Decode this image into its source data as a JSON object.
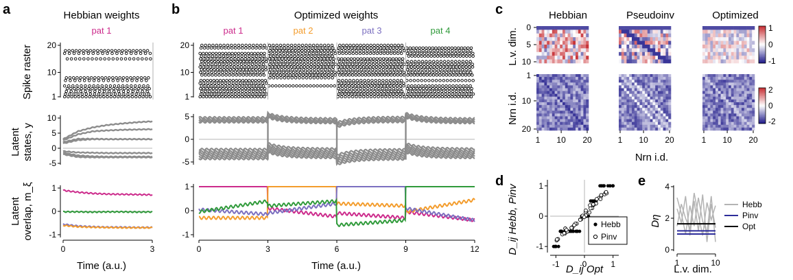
{
  "panels": {
    "a": {
      "letter": "a",
      "title": "Hebbian weights",
      "pattern_label": "pat 1"
    },
    "b": {
      "letter": "b",
      "title": "Optimized weights",
      "pattern_labels": [
        "pat 1",
        "pat 2",
        "pat 3",
        "pat 4"
      ]
    },
    "c": {
      "letter": "c",
      "column_titles": [
        "Hebbian",
        "Pseudoinv",
        "Optimized"
      ],
      "ylabel_top": "L.v. dim.",
      "ylabel_bottom": "Nrn i.d.",
      "xlabel": "Nrn i.d."
    },
    "d": {
      "letter": "d",
      "ylabel": "D_ij Hebb, Pinv",
      "xlabel": "D_ij Opt",
      "legend": [
        "Hebb",
        "Pinv"
      ]
    },
    "e": {
      "letter": "e",
      "ylabel": "Dη",
      "xlabel": "L.v. dim.",
      "legend": [
        "Hebb",
        "Pinv",
        "Opt"
      ]
    }
  },
  "row_labels": {
    "raster": "Spike raster",
    "latent_line1": "Latent",
    "latent_line2": "states, y",
    "overlap_line1": "Latent",
    "overlap_line2": "overlap, m_ξ"
  },
  "xlabel_time": "Time (a.u.)",
  "colors": {
    "pat1": "#cc2a8b",
    "pat2": "#f39c2c",
    "pat3": "#7b6fc0",
    "pat4": "#2f9a3a",
    "trace": "#8c8c8c",
    "hebb": "#b3b3b3",
    "pinv": "#2c2c9a",
    "opt": "#000000"
  },
  "chart_data": [
    {
      "type": "scatter",
      "name": "Spike raster (Hebbian)",
      "xlabel": "",
      "ylabel": "Spike raster",
      "xlim": [
        0,
        3
      ],
      "ylim": [
        1,
        20
      ],
      "yticks": [
        1,
        10,
        20
      ],
      "active_neurons": [
        1,
        2,
        3,
        4,
        5,
        7,
        8,
        15,
        17,
        18
      ]
    },
    {
      "type": "line",
      "name": "Latent states (Hebbian)",
      "ylabel": "Latent states, y",
      "xlim": [
        0,
        3
      ],
      "ylim": [
        -5,
        10
      ],
      "yticks": [
        -5,
        0,
        5,
        10
      ],
      "x": [
        0,
        0.5,
        1,
        1.5,
        2,
        2.5,
        3
      ],
      "series": [
        {
          "values": [
            3.0,
            5.6,
            6.9,
            7.7,
            8.2,
            8.6,
            8.9
          ]
        },
        {
          "values": [
            2.6,
            4.6,
            5.6,
            5.9,
            6.1,
            6.2,
            6.3
          ]
        },
        {
          "values": [
            2.0,
            3.1,
            3.1,
            3.0,
            3.0,
            3.0,
            3.0
          ]
        },
        {
          "values": [
            1.6,
            2.7,
            3.0,
            3.0,
            3.0,
            3.0,
            3.0
          ]
        },
        {
          "values": [
            -1.0,
            -1.4,
            -1.5,
            -1.6,
            -1.6,
            -1.6,
            -1.6
          ]
        },
        {
          "values": [
            -1.5,
            -2.4,
            -2.7,
            -2.8,
            -2.8,
            -2.8,
            -2.8
          ]
        },
        {
          "values": [
            -2.0,
            -2.9,
            -3.0,
            -3.0,
            -3.0,
            -3.0,
            -3.0
          ]
        }
      ]
    },
    {
      "type": "line",
      "name": "Latent overlap (Hebbian)",
      "ylabel": "Latent overlap, m_ξ",
      "xlabel": "Time (a.u.)",
      "xlim": [
        0,
        3
      ],
      "ylim": [
        -1,
        1
      ],
      "xticks": [
        0,
        3
      ],
      "yticks": [
        -1,
        0,
        1
      ],
      "x": [
        0,
        0.5,
        1,
        1.5,
        2,
        2.5,
        3
      ],
      "series": [
        {
          "values": [
            0.9,
            0.82,
            0.77,
            0.74,
            0.73,
            0.72,
            0.71
          ]
        },
        {
          "values": [
            -0.02,
            -0.02,
            -0.03,
            -0.02,
            -0.02,
            -0.03,
            -0.02
          ]
        },
        {
          "values": [
            -0.55,
            -0.63,
            -0.66,
            -0.68,
            -0.68,
            -0.69,
            -0.69
          ]
        },
        {
          "values": [
            -0.6,
            -0.66,
            -0.68,
            -0.69,
            -0.7,
            -0.7,
            -0.7
          ]
        }
      ]
    },
    {
      "type": "scatter",
      "name": "Spike raster (Optimized)",
      "xlim": [
        0,
        12
      ],
      "ylim": [
        1,
        20
      ],
      "yticks": [
        1,
        10,
        20
      ],
      "segments": [
        {
          "start": 0,
          "end": 3,
          "active_neurons": [
            1,
            2,
            3,
            4,
            5,
            6,
            7,
            9,
            10,
            11,
            12,
            13,
            14,
            15,
            16,
            17,
            19,
            20
          ]
        },
        {
          "start": 3,
          "end": 6,
          "active_neurons": [
            5,
            8,
            9,
            10,
            11,
            12,
            13,
            14,
            15,
            16,
            17,
            18,
            19,
            20
          ]
        },
        {
          "start": 6,
          "end": 9,
          "active_neurons": [
            1,
            2,
            3,
            4,
            5,
            6,
            7,
            9,
            10,
            11,
            12,
            13,
            14,
            15,
            17,
            18,
            19,
            20
          ]
        },
        {
          "start": 9,
          "end": 12,
          "active_neurons": [
            1,
            2,
            3,
            4,
            5,
            7,
            9,
            10,
            11,
            12,
            13,
            14,
            16,
            17,
            18,
            19
          ]
        }
      ]
    },
    {
      "type": "line",
      "name": "Latent states (Optimized)",
      "xlim": [
        0,
        12
      ],
      "ylim": [
        -5,
        5
      ],
      "yticks": [
        -5,
        0,
        5
      ],
      "levels_high": [
        4.8,
        4.4,
        4.1,
        3.8
      ],
      "levels_low": [
        -2.2,
        -2.7,
        -3.1,
        -3.5,
        -3.9,
        -4.3
      ]
    },
    {
      "type": "line",
      "name": "Latent overlap (Optimized)",
      "xlabel": "Time (a.u.)",
      "xlim": [
        0,
        12
      ],
      "ylim": [
        -1,
        1
      ],
      "xticks": [
        0,
        3,
        6,
        9,
        12
      ],
      "yticks": [
        -1,
        0,
        1
      ],
      "x": [
        0,
        2.99,
        3.01,
        5.99,
        6.01,
        8.99,
        9.01,
        12
      ],
      "series": [
        {
          "name": "pat 1",
          "values": [
            1.0,
            1.0,
            0.1,
            -0.25,
            -0.1,
            -0.3,
            -0.05,
            -0.4
          ]
        },
        {
          "name": "pat 2",
          "values": [
            -0.3,
            -0.3,
            1.0,
            1.0,
            0.3,
            0.2,
            -0.05,
            0.45
          ]
        },
        {
          "name": "pat 3",
          "values": [
            0.05,
            -0.15,
            -0.1,
            0.3,
            1.0,
            1.0,
            0.1,
            -0.4
          ]
        },
        {
          "name": "pat 4",
          "values": [
            -0.05,
            0.4,
            0.2,
            0.4,
            -0.6,
            -0.4,
            1.0,
            1.0
          ]
        }
      ]
    },
    {
      "type": "heatmap",
      "name": "Decoder matrices (L.v. dim. x Nrn i.d.)",
      "rows": 10,
      "cols": 20,
      "colorbar": {
        "ticks": [
          1,
          0,
          -1
        ],
        "range": [
          -1,
          1
        ]
      },
      "columns": [
        "Hebbian",
        "Pseudoinv",
        "Optimized"
      ],
      "yticks": [
        0,
        5,
        10
      ],
      "xticks": [
        1,
        10,
        20
      ]
    },
    {
      "type": "heatmap",
      "name": "Recurrent matrices (Nrn i.d. x Nrn i.d.)",
      "rows": 20,
      "cols": 20,
      "colorbar": {
        "ticks": [
          2,
          0,
          -2
        ],
        "range": [
          -2,
          2
        ]
      },
      "yticks": [
        1,
        10,
        20
      ],
      "xticks": [
        1,
        10,
        20
      ]
    },
    {
      "type": "scatter",
      "name": "D_ij comparison",
      "xlabel": "D_ij Opt",
      "ylabel": "D_ij Hebb, Pinv",
      "xlim": [
        -1.2,
        1.2
      ],
      "ylim": [
        -1.2,
        1.2
      ],
      "xticks": [
        -1,
        0,
        1
      ],
      "yticks": [
        -1,
        0,
        1
      ],
      "series": [
        {
          "name": "Hebb",
          "x": [
            -1.05,
            -0.95,
            -0.85,
            -0.8,
            -0.7,
            -0.6,
            -0.5,
            -0.4,
            -0.3,
            -0.2,
            -0.1,
            0.0,
            0.1,
            0.2,
            0.3,
            0.4,
            0.55,
            0.7,
            0.85,
            0.95
          ],
          "y": [
            -1.0,
            -1.0,
            -0.5,
            -0.5,
            -0.5,
            -0.5,
            -0.5,
            -0.5,
            -0.5,
            -0.5,
            0.0,
            0.0,
            0.0,
            0.5,
            0.5,
            0.5,
            1.0,
            1.0,
            1.0,
            1.0
          ]
        },
        {
          "name": "Pinv",
          "x": [
            -0.9,
            -0.75,
            -0.6,
            -0.45,
            -0.3,
            -0.15,
            0.0,
            0.1,
            0.2,
            0.35,
            0.5,
            0.65,
            0.8
          ],
          "y": [
            -0.8,
            -0.6,
            -0.45,
            -0.35,
            -0.25,
            -0.1,
            0.0,
            0.15,
            0.3,
            0.4,
            0.55,
            0.7,
            0.75
          ]
        }
      ]
    },
    {
      "type": "line",
      "name": "D eta per latent dim",
      "xlabel": "L.v. dim.",
      "ylabel": "Dη",
      "xlim": [
        1,
        10
      ],
      "ylim": [
        0,
        4
      ],
      "xticks": [
        1,
        10
      ],
      "yticks": [
        0,
        2,
        4
      ],
      "x": [
        1,
        2,
        3,
        4,
        5,
        6,
        7,
        8,
        9,
        10
      ],
      "series": [
        {
          "name": "Hebb",
          "values": [
            2.6,
            1.7,
            3.4,
            0.9,
            3.1,
            1.2,
            3.5,
            0.5,
            2.9,
            1.4
          ]
        },
        {
          "name": "Hebb",
          "values": [
            3.3,
            2.3,
            1.0,
            2.8,
            1.5,
            3.3,
            1.8,
            1.1,
            3.4,
            0.5
          ]
        },
        {
          "name": "Hebb",
          "values": [
            1.5,
            2.9,
            2.0,
            1.3,
            3.6,
            2.2,
            0.9,
            3.0,
            1.9,
            2.8
          ]
        },
        {
          "name": "Pinv",
          "values": [
            1.2,
            1.2,
            1.2,
            1.2,
            1.2,
            1.2,
            1.2,
            1.2,
            1.2,
            1.2
          ]
        },
        {
          "name": "Pinv",
          "values": [
            1.0,
            1.0,
            1.0,
            1.0,
            1.0,
            1.0,
            1.0,
            1.0,
            1.0,
            1.0
          ]
        },
        {
          "name": "Opt",
          "values": [
            1.65,
            1.65,
            1.65,
            1.65,
            1.65,
            1.65,
            1.65,
            1.65,
            1.65,
            1.65
          ]
        }
      ]
    }
  ]
}
